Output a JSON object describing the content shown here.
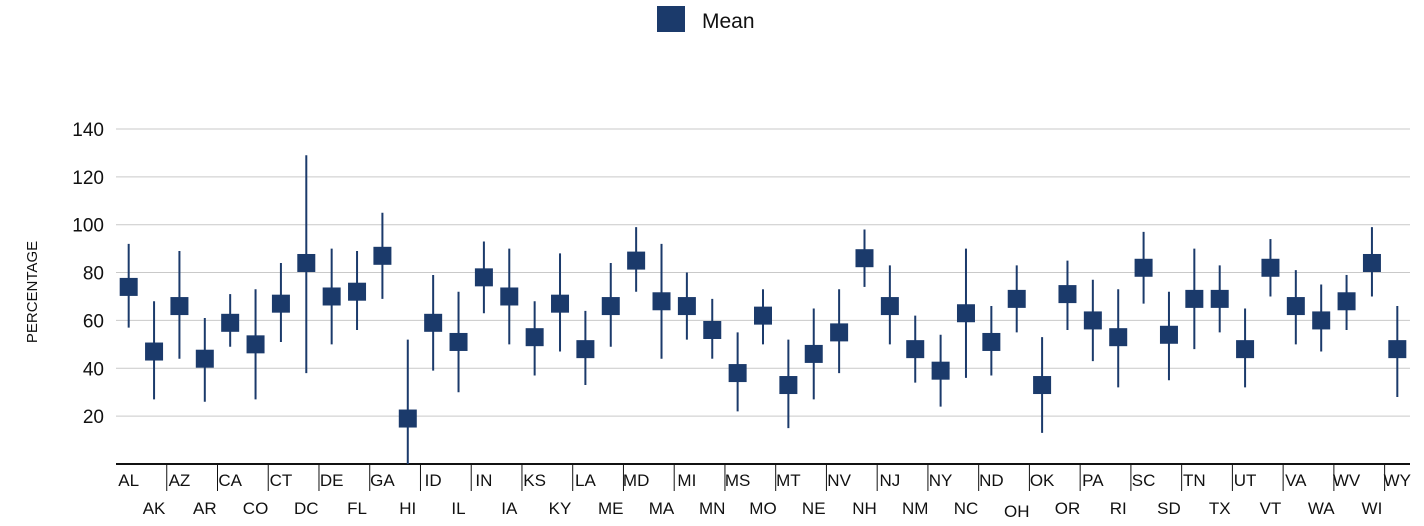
{
  "chart_data": {
    "type": "scatter",
    "title": "",
    "xlabel": "",
    "ylabel": "PERCENTAGE",
    "ylim": [
      0,
      140
    ],
    "yticks": [
      20,
      40,
      60,
      80,
      100,
      120,
      140
    ],
    "grid": true,
    "legend_position": "top-center",
    "series": [
      {
        "name": "Mean",
        "color": "#1b3a6b",
        "marker": "square"
      }
    ],
    "categories": [
      "AL",
      "AK",
      "AZ",
      "AR",
      "CA",
      "CO",
      "CT",
      "DC",
      "DE",
      "FL",
      "GA",
      "HI",
      "ID",
      "IL",
      "IN",
      "IA",
      "KS",
      "KY",
      "LA",
      "ME",
      "MD",
      "MA",
      "MI",
      "MN",
      "MS",
      "MO",
      "MT",
      "NE",
      "NV",
      "NH",
      "NJ",
      "NM",
      "NY",
      "NC",
      "ND",
      "OH",
      "OK",
      "OR",
      "PA",
      "RI",
      "SC",
      "SD",
      "TN",
      "TX",
      "UT",
      "VT",
      "VA",
      "WA",
      "WV",
      "WI",
      "WY"
    ],
    "mean": [
      74,
      47,
      66,
      44,
      59,
      50,
      67,
      84,
      70,
      72,
      87,
      19,
      59,
      51,
      78,
      70,
      53,
      67,
      48,
      66,
      85,
      68,
      66,
      56,
      38,
      62,
      33,
      46,
      55,
      86,
      66,
      48,
      39,
      63,
      51,
      69,
      33,
      71,
      60,
      53,
      82,
      54,
      69,
      69,
      48,
      82,
      66,
      60,
      68,
      84,
      48
    ],
    "low": [
      57,
      27,
      44,
      26,
      49,
      27,
      51,
      38,
      50,
      56,
      69,
      0,
      39,
      30,
      63,
      50,
      37,
      47,
      33,
      49,
      72,
      44,
      52,
      44,
      22,
      50,
      15,
      27,
      38,
      74,
      50,
      34,
      24,
      36,
      37,
      55,
      13,
      56,
      43,
      32,
      67,
      35,
      48,
      55,
      32,
      70,
      50,
      47,
      56,
      70,
      28
    ],
    "high": [
      92,
      68,
      89,
      61,
      71,
      73,
      84,
      129,
      90,
      89,
      105,
      52,
      79,
      72,
      93,
      90,
      68,
      88,
      64,
      84,
      99,
      92,
      80,
      69,
      55,
      73,
      52,
      65,
      73,
      98,
      83,
      62,
      54,
      90,
      66,
      83,
      53,
      85,
      77,
      73,
      97,
      72,
      90,
      83,
      65,
      94,
      81,
      75,
      79,
      99,
      66
    ]
  }
}
